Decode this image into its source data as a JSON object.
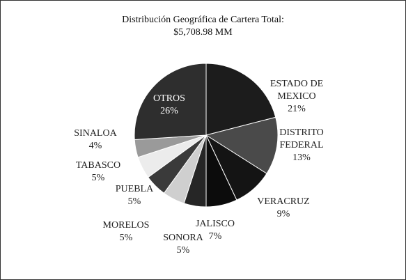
{
  "chart_data": {
    "type": "pie",
    "title": "Distribución Geográfica de Cartera Total:",
    "subtitle": "$5,708.98 MM",
    "categories": [
      "ESTADO DE MEXICO",
      "DISTRITO FEDERAL",
      "VERACRUZ",
      "JALISCO",
      "SONORA",
      "MORELOS",
      "PUEBLA",
      "TABASCO",
      "SINALOA",
      "OTROS"
    ],
    "values": [
      21,
      13,
      9,
      7,
      5,
      5,
      5,
      5,
      4,
      26
    ],
    "value_labels": [
      "21%",
      "13%",
      "9%",
      "7%",
      "5%",
      "5%",
      "5%",
      "5%",
      "4%",
      "26%"
    ],
    "colors": [
      "#1c1c1c",
      "#4a4a4a",
      "#141414",
      "#0c0c0c",
      "#262626",
      "#cfcfcf",
      "#3a3a3a",
      "#ececec",
      "#9a9a9a",
      "#2e2e2e"
    ]
  }
}
